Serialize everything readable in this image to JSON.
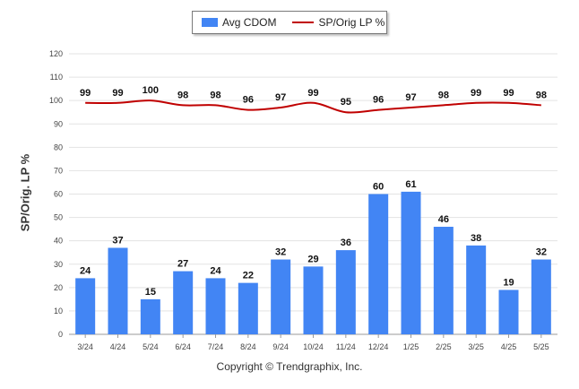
{
  "chart_data": {
    "type": "bar",
    "categories": [
      "3/24",
      "4/24",
      "5/24",
      "6/24",
      "7/24",
      "8/24",
      "9/24",
      "10/24",
      "11/24",
      "12/24",
      "1/25",
      "2/25",
      "3/25",
      "4/25",
      "5/25"
    ],
    "series": [
      {
        "name": "Avg CDOM",
        "type": "bar",
        "color": "#4285f4",
        "values": [
          24,
          37,
          15,
          27,
          24,
          22,
          32,
          29,
          36,
          60,
          61,
          46,
          38,
          19,
          32
        ]
      },
      {
        "name": "SP/Orig LP %",
        "type": "line",
        "color": "#c00000",
        "values": [
          99,
          99,
          100,
          98,
          98,
          96,
          97,
          99,
          95,
          96,
          97,
          98,
          99,
          99,
          98
        ]
      }
    ],
    "ylabel": "SP/Orig. LP %",
    "ylim": [
      0,
      120
    ],
    "yticks": [
      0,
      10,
      20,
      30,
      40,
      50,
      60,
      70,
      80,
      90,
      100,
      110,
      120
    ],
    "grid": true,
    "legend_position": "top-center"
  },
  "legend": {
    "bar_label": "Avg CDOM",
    "line_label": "SP/Orig LP %"
  },
  "footer": {
    "copyright": "Copyright © Trendgraphix, Inc."
  }
}
